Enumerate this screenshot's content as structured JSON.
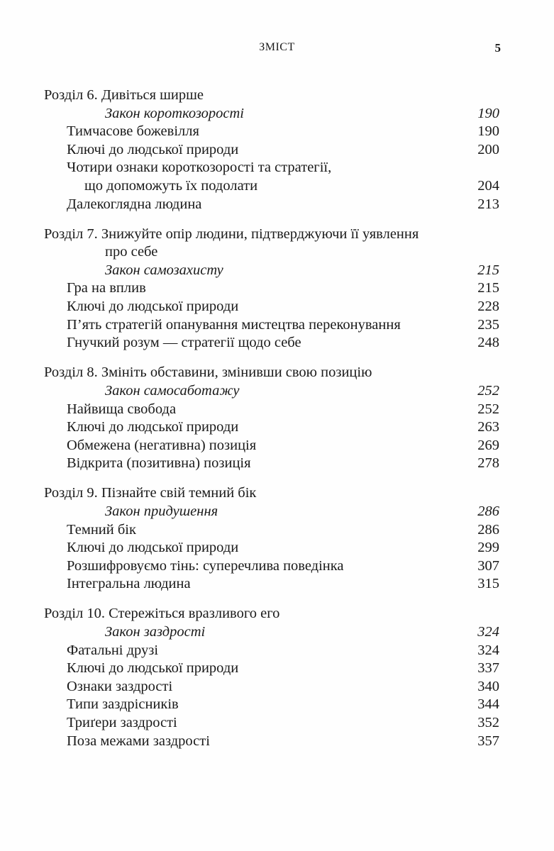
{
  "header": {
    "title": "ЗМІСТ",
    "page_number": "5"
  },
  "toc": [
    {
      "lines": [
        {
          "kind": "chapter",
          "text": "Розділ 6. Дивіться ширше",
          "page": ""
        },
        {
          "kind": "law",
          "text": "Закон короткозорості",
          "page": "190"
        },
        {
          "kind": "item",
          "text": "Тимчасове божевілля",
          "page": "190"
        },
        {
          "kind": "item",
          "text": "Ключі до людської природи",
          "page": "200"
        },
        {
          "kind": "item",
          "text": "Чотири ознаки короткозорості та стратегії,",
          "page": ""
        },
        {
          "kind": "item-cont",
          "text": "що допоможуть їх подолати",
          "page": "204"
        },
        {
          "kind": "item",
          "text": "Далекоглядна людина",
          "page": "213"
        }
      ]
    },
    {
      "lines": [
        {
          "kind": "chapter",
          "text": "Розділ 7. Знижуйте опір людини, підтверджуючи її уявлення",
          "page": ""
        },
        {
          "kind": "chapter-cont",
          "text": "про себе",
          "page": ""
        },
        {
          "kind": "law",
          "text": "Закон самозахисту",
          "page": "215"
        },
        {
          "kind": "item",
          "text": "Гра на вплив",
          "page": "215"
        },
        {
          "kind": "item",
          "text": "Ключі до людської природи",
          "page": "228"
        },
        {
          "kind": "item",
          "text": "П’ять стратегій опанування мистецтва переконування",
          "page": "235"
        },
        {
          "kind": "item",
          "text": "Гнучкий розум — стратегії щодо себе",
          "page": "248"
        }
      ]
    },
    {
      "lines": [
        {
          "kind": "chapter",
          "text": "Розділ 8. Змініть обставини, змінивши свою позицію",
          "page": ""
        },
        {
          "kind": "law",
          "text": "Закон самосаботажу",
          "page": "252"
        },
        {
          "kind": "item",
          "text": "Найвища свобода",
          "page": "252"
        },
        {
          "kind": "item",
          "text": "Ключі до людської природи",
          "page": "263"
        },
        {
          "kind": "item",
          "text": "Обмежена (негативна) позиція",
          "page": "269"
        },
        {
          "kind": "item",
          "text": "Відкрита (позитивна) позиція",
          "page": "278"
        }
      ]
    },
    {
      "lines": [
        {
          "kind": "chapter",
          "text": "Розділ 9. Пізнайте свій темний бік",
          "page": ""
        },
        {
          "kind": "law",
          "text": "Закон придушення",
          "page": "286"
        },
        {
          "kind": "item",
          "text": "Темний бік",
          "page": "286"
        },
        {
          "kind": "item",
          "text": "Ключі до людської природи",
          "page": "299"
        },
        {
          "kind": "item",
          "text": "Розшифровуємо тінь: суперечлива поведінка",
          "page": "307"
        },
        {
          "kind": "item",
          "text": "Інтегральна людина",
          "page": "315"
        }
      ]
    },
    {
      "lines": [
        {
          "kind": "chapter",
          "text": "Розділ 10. Стережіться вразливого его",
          "page": ""
        },
        {
          "kind": "law",
          "text": "Закон заздрості",
          "page": "324"
        },
        {
          "kind": "item",
          "text": "Фатальні друзі",
          "page": "324"
        },
        {
          "kind": "item",
          "text": "Ключі до людської природи",
          "page": "337"
        },
        {
          "kind": "item",
          "text": "Ознаки заздрості",
          "page": "340"
        },
        {
          "kind": "item",
          "text": "Типи заздрісників",
          "page": "344"
        },
        {
          "kind": "item",
          "text": "Триґери заздрості",
          "page": "352"
        },
        {
          "kind": "item",
          "text": "Поза межами заздрості",
          "page": "357"
        }
      ]
    }
  ]
}
